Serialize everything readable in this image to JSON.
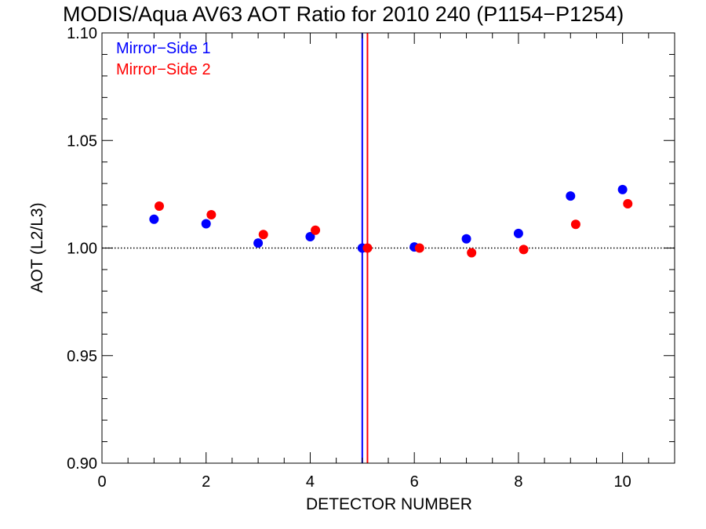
{
  "chart_data": {
    "type": "scatter",
    "title": "MODIS/Aqua AV63 AOT Ratio for 2010 240 (P1154−P1254)",
    "xlabel": "DETECTOR NUMBER",
    "ylabel": "AOT (L2/L3)",
    "xlim": [
      0,
      11
    ],
    "ylim": [
      0.9,
      1.1
    ],
    "xticks": [
      0,
      2,
      4,
      6,
      8,
      10
    ],
    "xtick_labels": [
      "0",
      "2",
      "4",
      "6",
      "8",
      "10"
    ],
    "yticks": [
      0.9,
      0.95,
      1.0,
      1.05,
      1.1
    ],
    "ytick_labels": [
      "0.90",
      "0.95",
      "1.00",
      "1.05",
      "1.10"
    ],
    "x_minor_step": 0.5,
    "y_minor_step": 0.01,
    "legend_position": "top-left",
    "reference_line": {
      "y": 1.0,
      "style": "dotted",
      "color": "#000000"
    },
    "vertical_lines": [
      {
        "x": 5.0,
        "color": "#0000ff"
      },
      {
        "x": 5.1,
        "color": "#ff0000"
      }
    ],
    "series": [
      {
        "name": "Mirror−Side 1",
        "color": "#0000ff",
        "x": [
          1,
          2,
          3,
          4,
          5,
          6,
          7,
          8,
          9,
          10
        ],
        "y": [
          1.0134,
          1.0113,
          1.0023,
          1.0053,
          1.0,
          1.0005,
          1.0043,
          1.0068,
          1.0242,
          1.0272
        ]
      },
      {
        "name": "Mirror−Side 2",
        "color": "#ff0000",
        "x": [
          1.1,
          2.1,
          3.1,
          4.1,
          5.1,
          6.1,
          7.1,
          8.1,
          9.1,
          10.1
        ],
        "y": [
          1.0195,
          1.0155,
          1.0063,
          1.0083,
          1.0,
          1.0,
          0.9978,
          0.9993,
          1.011,
          1.0206
        ]
      }
    ]
  }
}
